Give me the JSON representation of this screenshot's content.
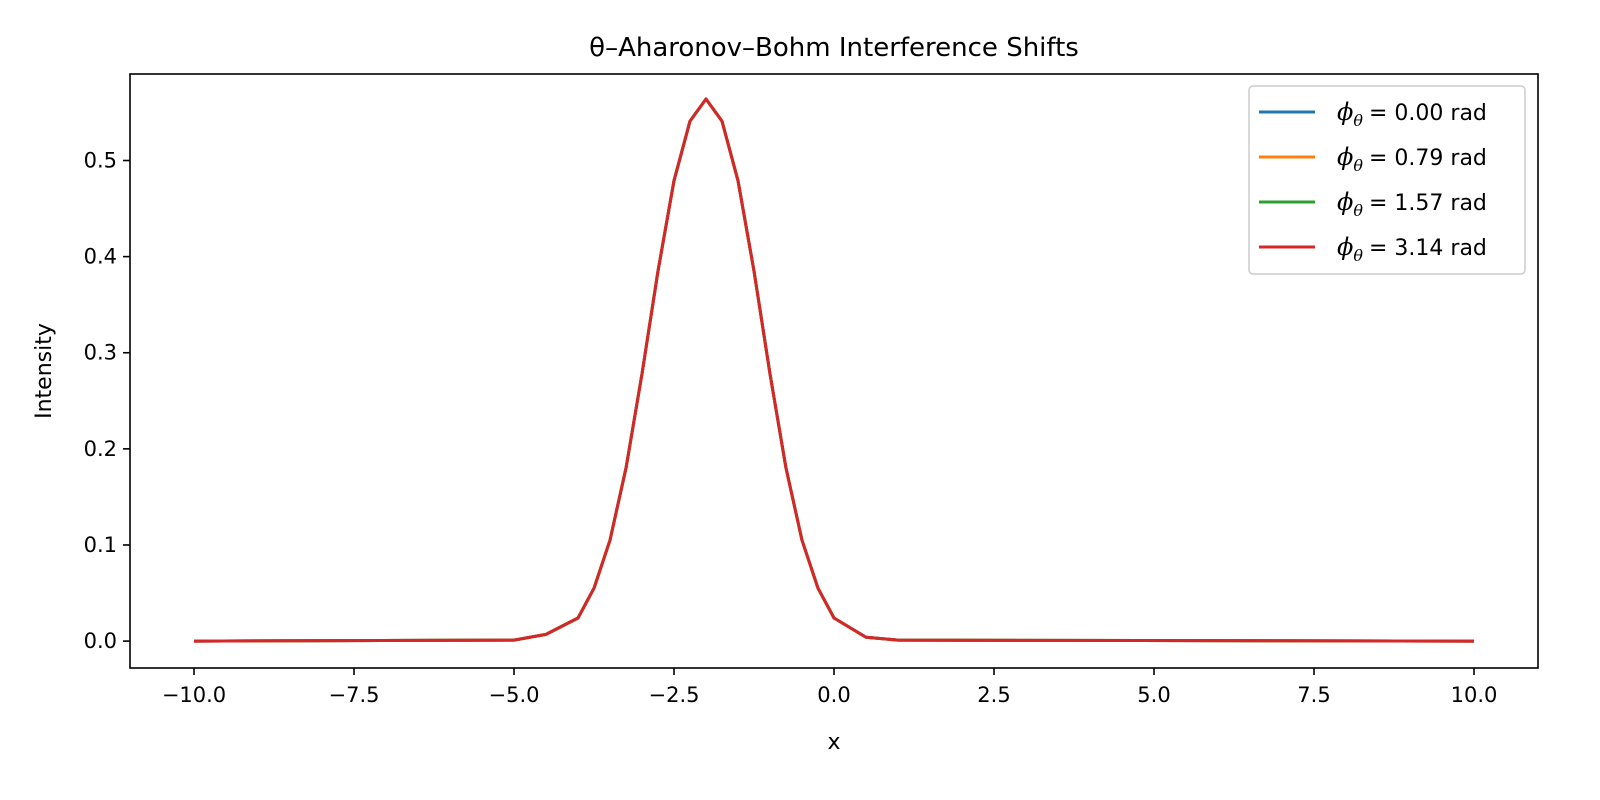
{
  "chart_data": {
    "type": "line",
    "title": "θ–Aharonov–Bohm Interference Shifts",
    "xlabel": "x",
    "ylabel": "Intensity",
    "xlim": [
      -11.0,
      11.0
    ],
    "ylim": [
      -0.028,
      0.59
    ],
    "x_ticks": [
      -10.0,
      -7.5,
      -5.0,
      -2.5,
      0.0,
      2.5,
      5.0,
      7.5,
      10.0
    ],
    "x_tick_labels": [
      "−10.0",
      "−7.5",
      "−5.0",
      "−2.5",
      "0.0",
      "2.5",
      "5.0",
      "7.5",
      "10.0"
    ],
    "y_ticks": [
      0.0,
      0.1,
      0.2,
      0.3,
      0.4,
      0.5
    ],
    "y_tick_labels": [
      "0.0",
      "0.1",
      "0.2",
      "0.3",
      "0.4",
      "0.5"
    ],
    "grid": false,
    "legend_position": "top-right",
    "x": [
      -10.0,
      -5.0,
      -4.5,
      -4.0,
      -3.75,
      -3.5,
      -3.25,
      -3.0,
      -2.75,
      -2.5,
      -2.25,
      -2.0,
      -1.75,
      -1.5,
      -1.25,
      -1.0,
      -0.75,
      -0.5,
      -0.25,
      0.0,
      0.5,
      1.0,
      10.0
    ],
    "series": [
      {
        "name": "ϕθ = 0.00 rad",
        "name_parts": {
          "symbol": "ϕ",
          "subscript": "θ",
          "rest": "= 0.00 rad"
        },
        "color": "#1f77b4",
        "values": [
          0.0,
          0.001,
          0.007,
          0.024,
          0.055,
          0.105,
          0.18,
          0.278,
          0.385,
          0.479,
          0.541,
          0.564,
          0.541,
          0.479,
          0.385,
          0.278,
          0.18,
          0.105,
          0.055,
          0.024,
          0.004,
          0.001,
          0.0
        ]
      },
      {
        "name": "ϕθ = 0.79 rad",
        "name_parts": {
          "symbol": "ϕ",
          "subscript": "θ",
          "rest": "= 0.79 rad"
        },
        "color": "#ff7f0e",
        "values": [
          0.0,
          0.001,
          0.007,
          0.024,
          0.055,
          0.105,
          0.18,
          0.278,
          0.385,
          0.479,
          0.541,
          0.564,
          0.541,
          0.479,
          0.385,
          0.278,
          0.18,
          0.105,
          0.055,
          0.024,
          0.004,
          0.001,
          0.0
        ]
      },
      {
        "name": "ϕθ = 1.57 rad",
        "name_parts": {
          "symbol": "ϕ",
          "subscript": "θ",
          "rest": "= 1.57 rad"
        },
        "color": "#2ca02c",
        "values": [
          0.0,
          0.001,
          0.007,
          0.024,
          0.055,
          0.105,
          0.18,
          0.278,
          0.385,
          0.479,
          0.541,
          0.564,
          0.541,
          0.479,
          0.385,
          0.278,
          0.18,
          0.105,
          0.055,
          0.024,
          0.004,
          0.001,
          0.0
        ]
      },
      {
        "name": "ϕθ = 3.14 rad",
        "name_parts": {
          "symbol": "ϕ",
          "subscript": "θ",
          "rest": "= 3.14 rad"
        },
        "color": "#d62728",
        "values": [
          0.0,
          0.001,
          0.007,
          0.024,
          0.055,
          0.105,
          0.18,
          0.278,
          0.385,
          0.479,
          0.541,
          0.564,
          0.541,
          0.479,
          0.385,
          0.278,
          0.18,
          0.105,
          0.055,
          0.024,
          0.004,
          0.001,
          0.0
        ]
      }
    ]
  }
}
